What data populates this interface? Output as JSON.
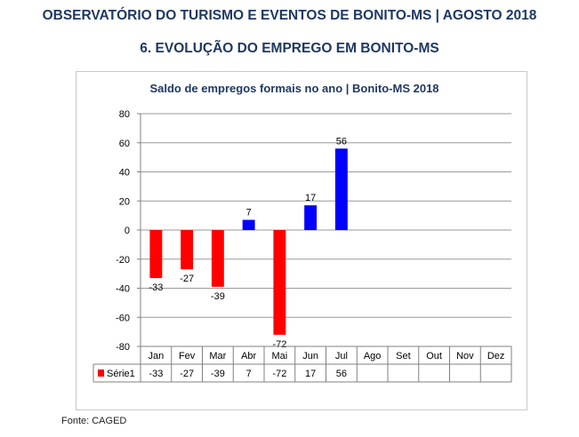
{
  "header": {
    "title": "OBSERVATÓRIO DO TURISMO E EVENTOS DE BONITO-MS | AGOSTO 2018",
    "section": "6. EVOLUÇÃO DO EMPREGO EM BONITO-MS"
  },
  "source": "Fonte: CAGED",
  "colors": {
    "negative": "#ff0000",
    "positive": "#0000ff",
    "heading": "#1f3864"
  },
  "chart_data": {
    "type": "bar",
    "title": "Saldo de empregos formais no ano | Bonito-MS 2018",
    "xlabel": "",
    "ylabel": "",
    "categories": [
      "Jan",
      "Fev",
      "Mar",
      "Abr",
      "Mai",
      "Jun",
      "Jul",
      "Ago",
      "Set",
      "Out",
      "Nov",
      "Dez"
    ],
    "series": [
      {
        "name": "Série1",
        "values": [
          -33,
          -27,
          -39,
          7,
          -72,
          17,
          56,
          null,
          null,
          null,
          null,
          null
        ]
      }
    ],
    "ylim": [
      -80,
      80
    ],
    "yticks": [
      80,
      60,
      40,
      20,
      0,
      -20,
      -40,
      -60,
      -80
    ],
    "grid": true,
    "legend": "data-table"
  }
}
